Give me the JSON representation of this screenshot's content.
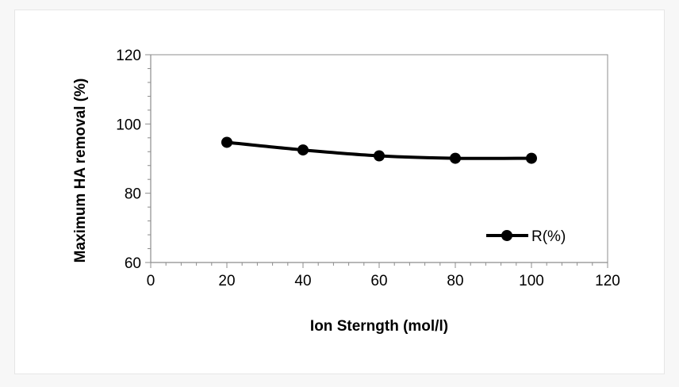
{
  "chart_data": {
    "type": "line",
    "title": "",
    "xlabel": "Ion Sterngth (mol/l)",
    "ylabel": "Maximum HA removal (%)",
    "xlim": [
      0,
      120
    ],
    "ylim": [
      60,
      120
    ],
    "x_ticks": [
      0,
      20,
      40,
      60,
      80,
      100,
      120
    ],
    "y_ticks": [
      60,
      80,
      100,
      120
    ],
    "x_tick_labels": [
      "0",
      "20",
      "40",
      "60",
      "80",
      "100",
      "120"
    ],
    "y_tick_labels": [
      "60",
      "80",
      "100",
      "120"
    ],
    "grid": false,
    "legend_position": "right",
    "series": [
      {
        "name": "R(%)",
        "x": [
          20,
          40,
          60,
          80,
          100
        ],
        "values": [
          94.7,
          92.5,
          90.8,
          90.1,
          90.1
        ],
        "color": "#000000",
        "marker": "circle",
        "smooth": true
      }
    ]
  }
}
